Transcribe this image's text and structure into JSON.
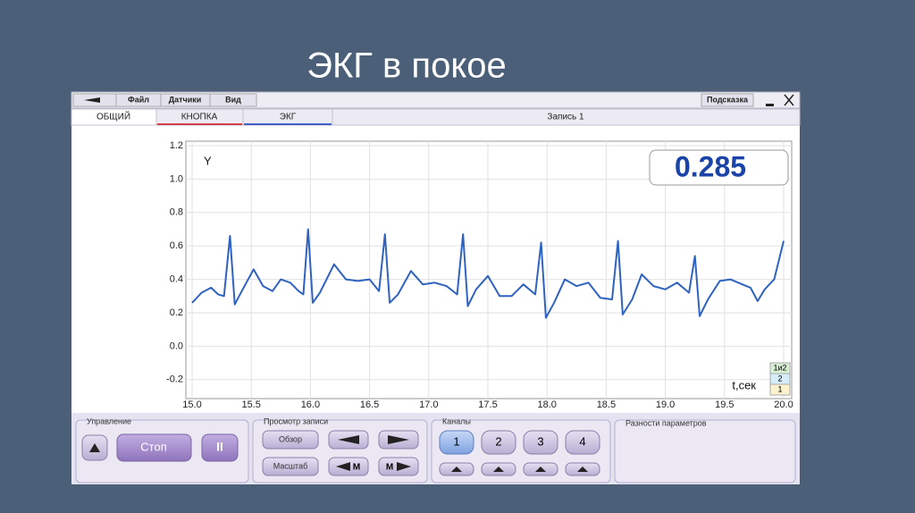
{
  "slide_title": "ЭКГ в покое",
  "menu": [
    "Файл",
    "Датчики",
    "Вид"
  ],
  "help": "Подсказка",
  "tabs": [
    "ОБЩИЙ",
    "КНОПКА",
    "ЭКГ"
  ],
  "record": "Запись 1",
  "chart_data": {
    "type": "line",
    "y_label": "Y",
    "x_label": "t,сек",
    "readout": "0.285",
    "channel_tags": [
      "1и2",
      "2",
      "1"
    ],
    "color": "#2f63c0",
    "grid": true,
    "xlim": [
      15,
      20
    ],
    "ylim": [
      -0.3,
      1.25
    ],
    "xticks": [
      {
        "value": 15,
        "label": "15.0"
      },
      15.5,
      {
        "value": 16,
        "label": "16.0"
      },
      16.5,
      {
        "value": 17,
        "label": "17.0"
      },
      17.5,
      {
        "value": 18,
        "label": "18.0"
      },
      18.5,
      {
        "value": 19,
        "label": "19.0"
      },
      19.5,
      {
        "value": 20,
        "label": "20.0"
      }
    ],
    "yticks": [
      1.2,
      {
        "value": 1,
        "label": "1.0"
      },
      0.8,
      0.6,
      0.4,
      0.2,
      {
        "value": 0,
        "label": "0.0"
      },
      -0.2
    ],
    "x": [
      15.0,
      15.08,
      15.16,
      15.22,
      15.27,
      15.32,
      15.36,
      15.42,
      15.52,
      15.6,
      15.68,
      15.75,
      15.83,
      15.9,
      15.94,
      15.98,
      16.02,
      16.08,
      16.2,
      16.3,
      16.4,
      16.5,
      16.58,
      16.63,
      16.67,
      16.74,
      16.85,
      16.95,
      17.05,
      17.15,
      17.24,
      17.29,
      17.33,
      17.4,
      17.5,
      17.6,
      17.7,
      17.8,
      17.9,
      17.95,
      17.99,
      18.06,
      18.15,
      18.25,
      18.35,
      18.45,
      18.55,
      18.6,
      18.64,
      18.72,
      18.8,
      18.9,
      19.0,
      19.1,
      19.2,
      19.25,
      19.29,
      19.36,
      19.46,
      19.55,
      19.65,
      19.72,
      19.78,
      19.84,
      19.92,
      20.0
    ],
    "values": [
      0.26,
      0.32,
      0.35,
      0.31,
      0.3,
      0.66,
      0.25,
      0.33,
      0.46,
      0.36,
      0.33,
      0.4,
      0.38,
      0.33,
      0.31,
      0.7,
      0.26,
      0.32,
      0.49,
      0.4,
      0.39,
      0.4,
      0.33,
      0.67,
      0.26,
      0.31,
      0.45,
      0.37,
      0.38,
      0.36,
      0.31,
      0.67,
      0.24,
      0.34,
      0.42,
      0.3,
      0.3,
      0.37,
      0.31,
      0.62,
      0.17,
      0.26,
      0.4,
      0.36,
      0.38,
      0.29,
      0.28,
      0.63,
      0.19,
      0.28,
      0.43,
      0.36,
      0.34,
      0.38,
      0.32,
      0.54,
      0.18,
      0.28,
      0.39,
      0.4,
      0.37,
      0.35,
      0.27,
      0.34,
      0.4,
      0.63
    ]
  },
  "controls": {
    "groups": [
      "Управление",
      "Просмотр записи",
      "Каналы",
      "Разности параметров"
    ],
    "stop": "Стоп",
    "pause": "II",
    "overview": "Обзор",
    "scale": "Масштаб",
    "m_back": "М",
    "m_fwd": "М",
    "channels": [
      "1",
      "2",
      "3",
      "4"
    ]
  }
}
